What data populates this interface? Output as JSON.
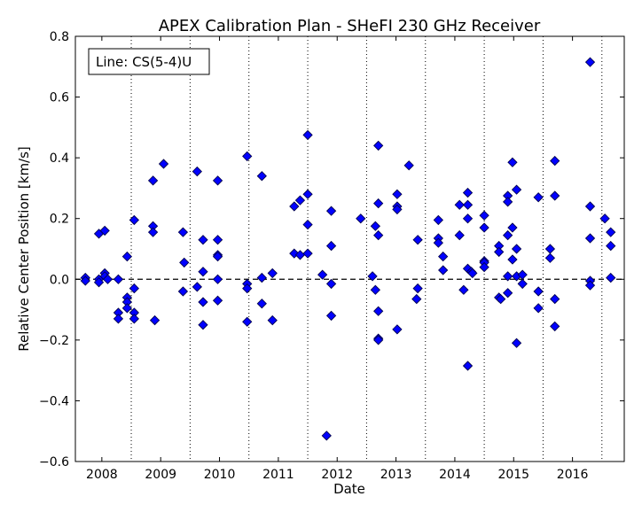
{
  "chart_data": {
    "type": "scatter",
    "title": "APEX Calibration Plan - SHeFI 230 GHz Receiver",
    "xlabel": "Date",
    "ylabel": "Relative Center Position [km/s]",
    "legend_text": "Line: CS(5-4)U",
    "legend_position": "top-left",
    "xlim": [
      2007.55,
      2016.88
    ],
    "ylim": [
      -0.6,
      0.8
    ],
    "x_ticks": [
      {
        "value": 2008.0,
        "label": "2008"
      },
      {
        "value": 2009.0,
        "label": "2009"
      },
      {
        "value": 2010.0,
        "label": "2010"
      },
      {
        "value": 2011.0,
        "label": "2011"
      },
      {
        "value": 2012.0,
        "label": "2012"
      },
      {
        "value": 2013.0,
        "label": "2013"
      },
      {
        "value": 2014.0,
        "label": "2014"
      },
      {
        "value": 2015.0,
        "label": "2015"
      },
      {
        "value": 2016.0,
        "label": "2016"
      }
    ],
    "y_ticks": [
      {
        "value": -0.6,
        "label": "−0.6"
      },
      {
        "value": -0.4,
        "label": "−0.4"
      },
      {
        "value": -0.2,
        "label": "−0.2"
      },
      {
        "value": 0.0,
        "label": "0.0"
      },
      {
        "value": 0.2,
        "label": "0.2"
      },
      {
        "value": 0.4,
        "label": "0.4"
      },
      {
        "value": 0.6,
        "label": "0.6"
      },
      {
        "value": 0.8,
        "label": "0.8"
      }
    ],
    "vertical_dotted_lines": [
      2008.5,
      2009.5,
      2010.5,
      2011.5,
      2012.5,
      2013.5,
      2014.5,
      2015.5,
      2016.5
    ],
    "reference_line_y": 0.0,
    "marker_color": "#0000ff",
    "marker_edge_color": "#00004d",
    "points": [
      [
        2007.72,
        0.005
      ],
      [
        2007.72,
        -0.005
      ],
      [
        2007.95,
        0.0
      ],
      [
        2007.95,
        -0.01
      ],
      [
        2007.95,
        0.15
      ],
      [
        2008.05,
        0.16
      ],
      [
        2008.05,
        0.02
      ],
      [
        2008.05,
        0.01
      ],
      [
        2008.1,
        0.0
      ],
      [
        2008.28,
        0.0
      ],
      [
        2008.28,
        -0.11
      ],
      [
        2008.28,
        -0.13
      ],
      [
        2008.43,
        0.075
      ],
      [
        2008.43,
        -0.06
      ],
      [
        2008.43,
        -0.075
      ],
      [
        2008.43,
        -0.095
      ],
      [
        2008.55,
        0.195
      ],
      [
        2008.55,
        -0.03
      ],
      [
        2008.55,
        -0.11
      ],
      [
        2008.55,
        -0.13
      ],
      [
        2008.87,
        0.325
      ],
      [
        2008.87,
        0.175
      ],
      [
        2008.87,
        0.155
      ],
      [
        2008.9,
        -0.135
      ],
      [
        2009.05,
        0.38
      ],
      [
        2009.38,
        0.155
      ],
      [
        2009.38,
        -0.04
      ],
      [
        2009.4,
        0.055
      ],
      [
        2009.62,
        0.355
      ],
      [
        2009.62,
        -0.025
      ],
      [
        2009.72,
        0.13
      ],
      [
        2009.72,
        0.025
      ],
      [
        2009.72,
        -0.075
      ],
      [
        2009.72,
        -0.15
      ],
      [
        2009.97,
        0.325
      ],
      [
        2009.97,
        0.13
      ],
      [
        2009.97,
        0.08
      ],
      [
        2009.97,
        0.075
      ],
      [
        2009.97,
        0.0
      ],
      [
        2009.97,
        -0.07
      ],
      [
        2010.47,
        0.405
      ],
      [
        2010.47,
        -0.015
      ],
      [
        2010.47,
        -0.03
      ],
      [
        2010.47,
        -0.14
      ],
      [
        2010.72,
        0.34
      ],
      [
        2010.72,
        0.005
      ],
      [
        2010.72,
        -0.08
      ],
      [
        2010.9,
        0.02
      ],
      [
        2010.9,
        -0.135
      ],
      [
        2011.27,
        0.24
      ],
      [
        2011.27,
        0.085
      ],
      [
        2011.37,
        0.26
      ],
      [
        2011.37,
        0.08
      ],
      [
        2011.5,
        0.475
      ],
      [
        2011.5,
        0.28
      ],
      [
        2011.5,
        0.18
      ],
      [
        2011.5,
        0.085
      ],
      [
        2011.75,
        0.015
      ],
      [
        2011.82,
        -0.515
      ],
      [
        2011.9,
        0.225
      ],
      [
        2011.9,
        0.11
      ],
      [
        2011.9,
        -0.015
      ],
      [
        2011.9,
        -0.12
      ],
      [
        2012.4,
        0.2
      ],
      [
        2012.6,
        0.01
      ],
      [
        2012.65,
        0.175
      ],
      [
        2012.65,
        -0.035
      ],
      [
        2012.7,
        0.44
      ],
      [
        2012.7,
        0.25
      ],
      [
        2012.7,
        0.145
      ],
      [
        2012.7,
        -0.105
      ],
      [
        2012.7,
        -0.195
      ],
      [
        2012.7,
        -0.2
      ],
      [
        2013.02,
        0.28
      ],
      [
        2013.02,
        0.24
      ],
      [
        2013.02,
        0.23
      ],
      [
        2013.02,
        -0.165
      ],
      [
        2013.22,
        0.375
      ],
      [
        2013.37,
        0.13
      ],
      [
        2013.37,
        -0.03
      ],
      [
        2013.35,
        -0.065
      ],
      [
        2013.72,
        0.195
      ],
      [
        2013.72,
        0.135
      ],
      [
        2013.72,
        0.12
      ],
      [
        2013.8,
        0.075
      ],
      [
        2013.8,
        0.03
      ],
      [
        2014.08,
        0.245
      ],
      [
        2014.08,
        0.145
      ],
      [
        2014.15,
        -0.035
      ],
      [
        2014.22,
        0.285
      ],
      [
        2014.22,
        0.245
      ],
      [
        2014.22,
        0.2
      ],
      [
        2014.22,
        0.035
      ],
      [
        2014.22,
        -0.285
      ],
      [
        2014.28,
        0.025
      ],
      [
        2014.3,
        0.02
      ],
      [
        2014.5,
        0.21
      ],
      [
        2014.5,
        0.17
      ],
      [
        2014.5,
        0.06
      ],
      [
        2014.5,
        0.055
      ],
      [
        2014.5,
        0.04
      ],
      [
        2014.75,
        0.11
      ],
      [
        2014.75,
        0.09
      ],
      [
        2014.75,
        -0.06
      ],
      [
        2014.78,
        -0.065
      ],
      [
        2014.9,
        0.275
      ],
      [
        2014.9,
        0.255
      ],
      [
        2014.9,
        0.145
      ],
      [
        2014.9,
        0.01
      ],
      [
        2014.9,
        -0.045
      ],
      [
        2014.98,
        0.385
      ],
      [
        2014.98,
        0.17
      ],
      [
        2014.98,
        0.065
      ],
      [
        2015.05,
        0.295
      ],
      [
        2015.05,
        0.1
      ],
      [
        2015.05,
        0.01
      ],
      [
        2015.05,
        -0.21
      ],
      [
        2015.15,
        0.015
      ],
      [
        2015.15,
        -0.015
      ],
      [
        2015.42,
        0.27
      ],
      [
        2015.42,
        -0.04
      ],
      [
        2015.42,
        -0.095
      ],
      [
        2015.62,
        0.1
      ],
      [
        2015.62,
        0.07
      ],
      [
        2015.7,
        0.39
      ],
      [
        2015.7,
        0.275
      ],
      [
        2015.7,
        -0.065
      ],
      [
        2015.7,
        -0.155
      ],
      [
        2016.3,
        0.715
      ],
      [
        2016.3,
        0.24
      ],
      [
        2016.3,
        0.135
      ],
      [
        2016.3,
        -0.005
      ],
      [
        2016.3,
        -0.02
      ],
      [
        2016.55,
        0.2
      ],
      [
        2016.65,
        0.155
      ],
      [
        2016.65,
        0.11
      ],
      [
        2016.65,
        0.005
      ]
    ]
  }
}
